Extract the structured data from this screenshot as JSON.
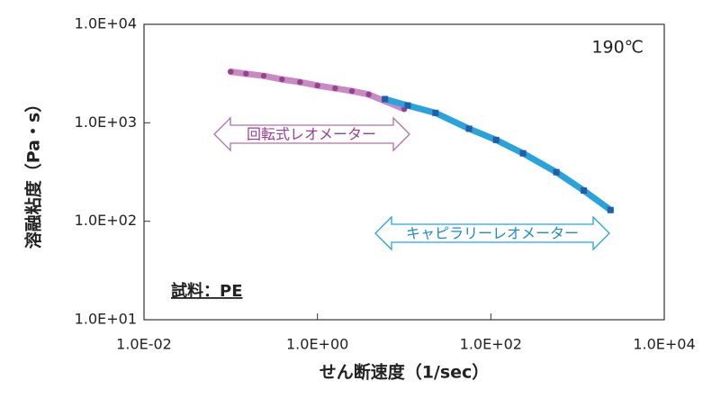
{
  "chart_data": {
    "type": "line",
    "x_label": "せん断速度（1/sec）",
    "y_label": "溶融粘度（Pa・s）",
    "annotations": {
      "temperature": "190℃",
      "sample": "試料：PE",
      "rotational": "回転式レオメーター",
      "capillary": "キャピラリーレオメーター"
    },
    "log_x": true,
    "log_y": true,
    "xlim": [
      0.01,
      10000
    ],
    "xticks": [
      {
        "value": 0.01,
        "label": "1.0E-02"
      },
      {
        "value": 1,
        "label": "1.0E+00"
      },
      {
        "value": 100,
        "label": "1.0E+02"
      },
      {
        "value": 10000,
        "label": "1.0E+04"
      }
    ],
    "ylim": [
      10,
      10000
    ],
    "yticks": [
      {
        "value": 10,
        "label": "1.0E+01"
      },
      {
        "value": 100,
        "label": "1.0E+02"
      },
      {
        "value": 1000,
        "label": "1.0E+03"
      },
      {
        "value": 10000,
        "label": "1.0E+04"
      }
    ],
    "series": [
      {
        "name": "回転式レオメーター",
        "color": "#c88ac2",
        "marker_color": "#9b3f95",
        "marker": "circle",
        "x": [
          0.1,
          0.15,
          0.24,
          0.39,
          0.63,
          1,
          1.6,
          2.5,
          3.9,
          10
        ],
        "values": [
          3300,
          3150,
          3000,
          2760,
          2590,
          2390,
          2240,
          2100,
          1940,
          1380
        ]
      },
      {
        "name": "キャピラリーレオメーター",
        "color": "#2aa3dc",
        "marker_color": "#1f5fa8",
        "marker": "square",
        "x": [
          6,
          11,
          23,
          56,
          115,
          235,
          570,
          1180,
          2400
        ],
        "values": [
          1740,
          1500,
          1260,
          870,
          670,
          490,
          315,
          205,
          130
        ]
      }
    ]
  }
}
